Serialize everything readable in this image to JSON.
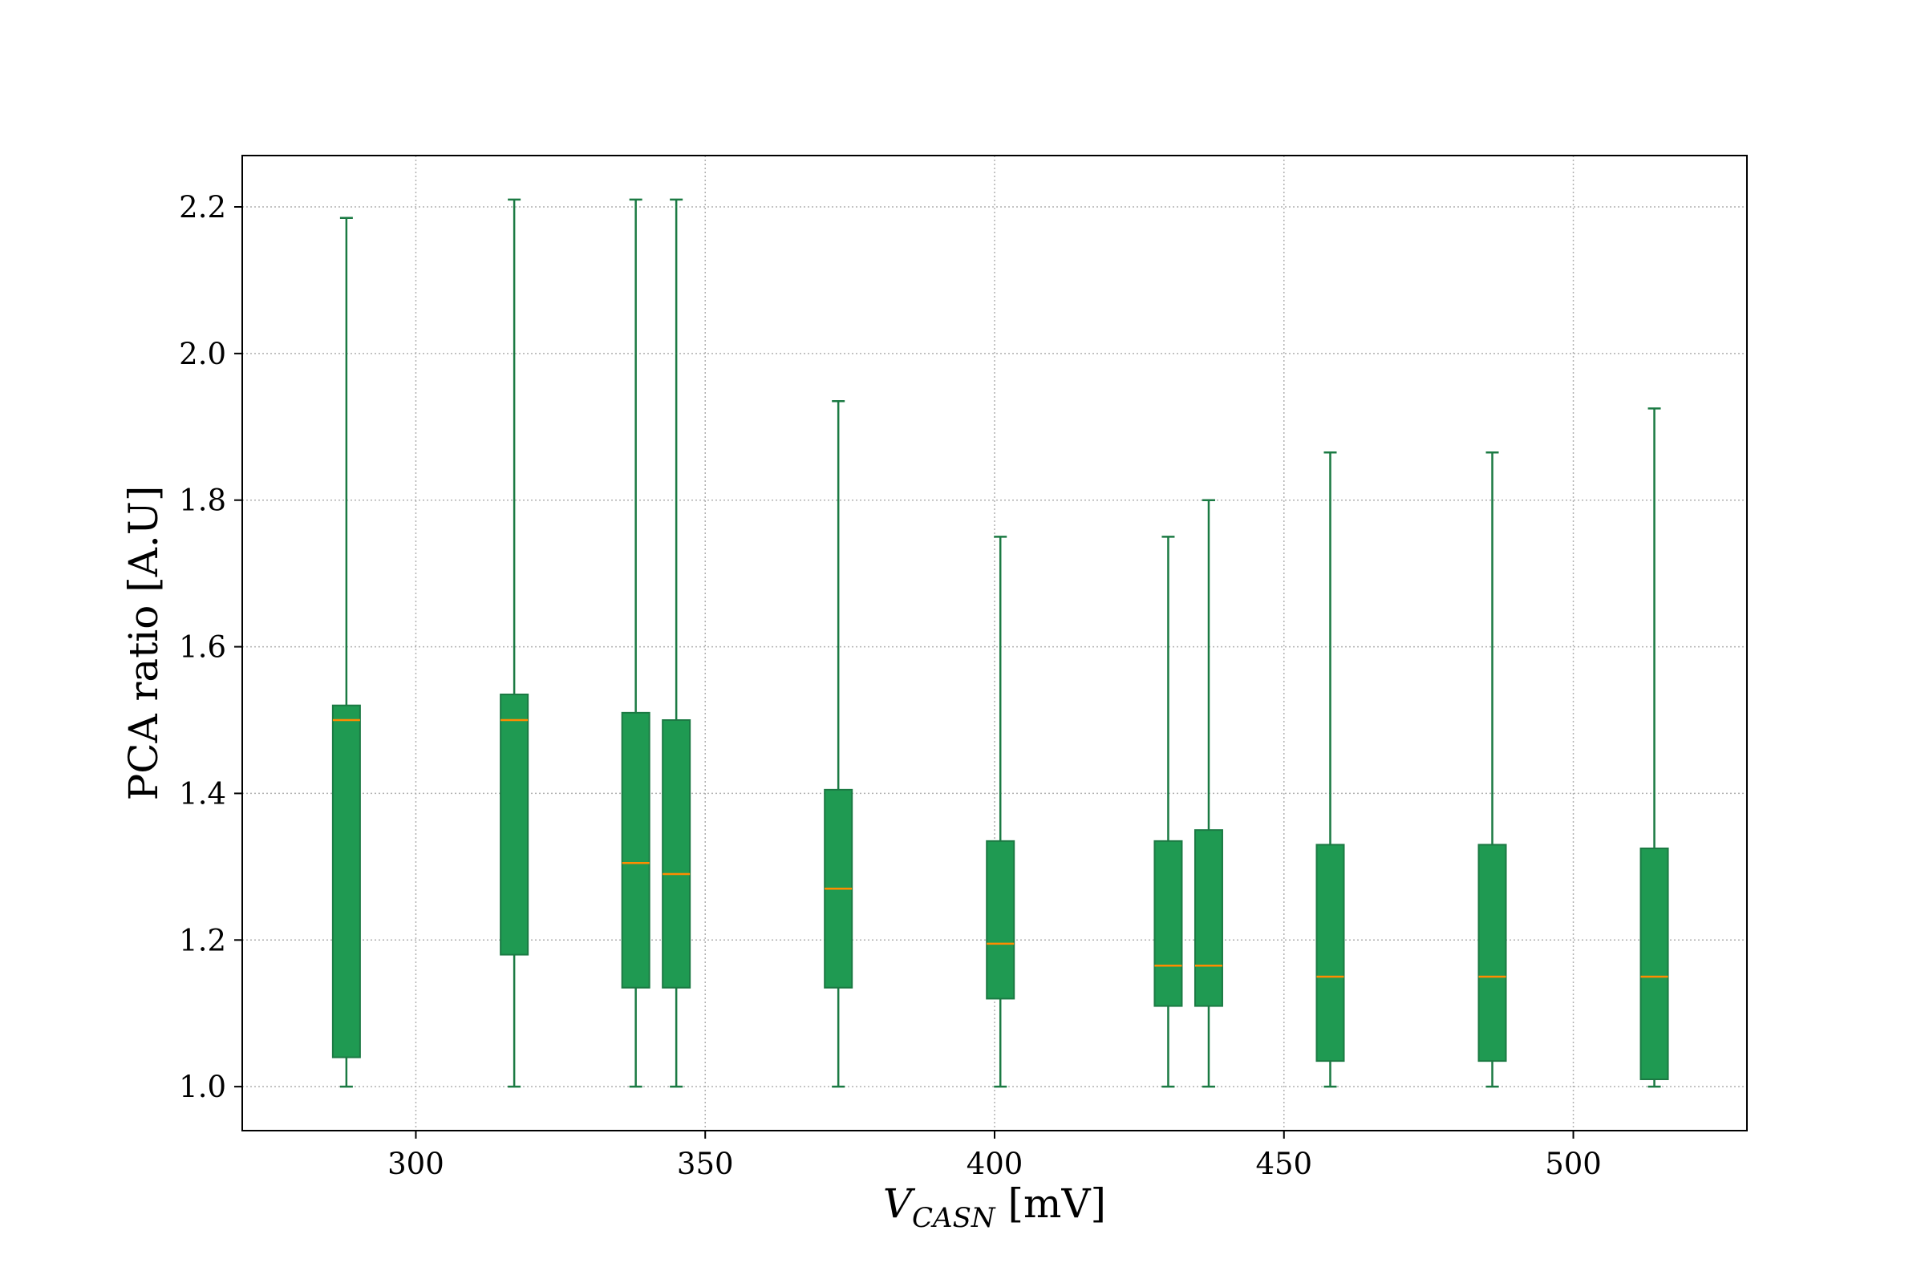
{
  "chart_data": {
    "type": "box",
    "title": "",
    "xlabel_main": "V",
    "xlabel_sub": "CASN",
    "xlabel_unit": " [mV]",
    "ylabel": "PCA ratio [A.U]",
    "xlim": [
      270,
      530
    ],
    "ylim": [
      0.94,
      2.27
    ],
    "xticks": [
      300,
      350,
      400,
      450,
      500
    ],
    "yticks": [
      1.0,
      1.2,
      1.4,
      1.6,
      1.8,
      2.0,
      2.2
    ],
    "grid": true,
    "legend": "none",
    "box_color": "#1f9a52",
    "whisker_color": "#1b7a43",
    "median_color": "#ff8c00",
    "boxes": [
      {
        "x": 288,
        "whisker_low": 1.0,
        "q1": 1.04,
        "median": 1.5,
        "q3": 1.52,
        "whisker_high": 2.185
      },
      {
        "x": 317,
        "whisker_low": 1.0,
        "q1": 1.18,
        "median": 1.5,
        "q3": 1.535,
        "whisker_high": 2.21
      },
      {
        "x": 338,
        "whisker_low": 1.0,
        "q1": 1.135,
        "median": 1.305,
        "q3": 1.51,
        "whisker_high": 2.21
      },
      {
        "x": 345,
        "whisker_low": 1.0,
        "q1": 1.135,
        "median": 1.29,
        "q3": 1.5,
        "whisker_high": 2.21
      },
      {
        "x": 373,
        "whisker_low": 1.0,
        "q1": 1.135,
        "median": 1.27,
        "q3": 1.405,
        "whisker_high": 1.935
      },
      {
        "x": 401,
        "whisker_low": 1.0,
        "q1": 1.12,
        "median": 1.195,
        "q3": 1.335,
        "whisker_high": 1.75
      },
      {
        "x": 430,
        "whisker_low": 1.0,
        "q1": 1.11,
        "median": 1.165,
        "q3": 1.335,
        "whisker_high": 1.75
      },
      {
        "x": 437,
        "whisker_low": 1.0,
        "q1": 1.11,
        "median": 1.165,
        "q3": 1.35,
        "whisker_high": 1.8
      },
      {
        "x": 458,
        "whisker_low": 1.0,
        "q1": 1.035,
        "median": 1.15,
        "q3": 1.33,
        "whisker_high": 1.865
      },
      {
        "x": 486,
        "whisker_low": 1.0,
        "q1": 1.035,
        "median": 1.15,
        "q3": 1.33,
        "whisker_high": 1.865
      },
      {
        "x": 514,
        "whisker_low": 1.0,
        "q1": 1.01,
        "median": 1.15,
        "q3": 1.325,
        "whisker_high": 1.925
      }
    ]
  }
}
